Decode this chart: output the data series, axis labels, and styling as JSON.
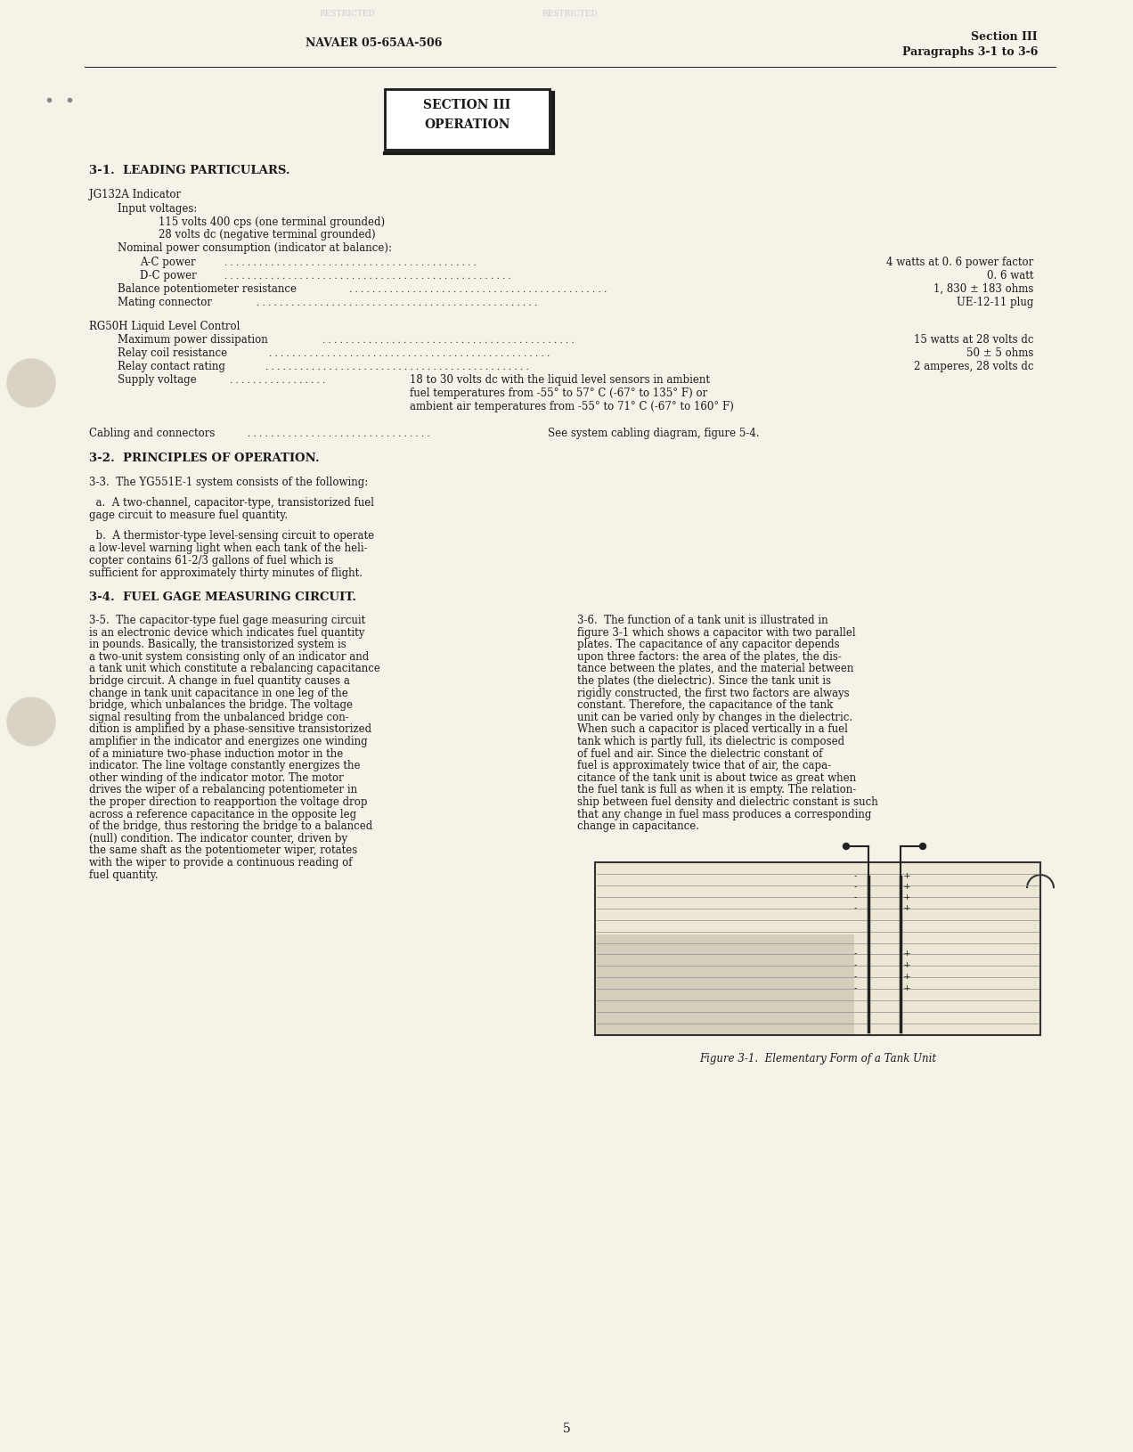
{
  "page_bg": "#f5f2e8",
  "text_color": "#1a1a1a",
  "header_left": "NAVAER 05-65AA-506",
  "header_right_line1": "Section III",
  "header_right_line2": "Paragraphs 3-1 to 3-6",
  "section_box_line1": "SECTION III",
  "section_box_line2": "OPERATION",
  "heading1": "3-1.  LEADING PARTICULARS.",
  "jg132a_label": "JG132A Indicator",
  "input_voltages_label": "Input voltages:",
  "volt1": "115 volts 400 cps (one terminal grounded)",
  "volt2": "28 volts dc (negative terminal grounded)",
  "nominal_label": "Nominal power consumption (indicator at balance):",
  "ac_power_label": "A-C power",
  "ac_power_value": "4 watts at 0. 6 power factor",
  "dc_power_label": "D-C power",
  "dc_power_value": "0. 6 watt",
  "balance_label": "Balance potentiometer resistance",
  "balance_value": "1, 830 ± 183 ohms",
  "mating_label": "Mating connector",
  "mating_value": "UE-12-11 plug",
  "rg50h_label": "RG50H Liquid Level Control",
  "max_power_label": "Maximum power dissipation",
  "max_power_value": "15 watts at 28 volts dc",
  "relay_coil_label": "Relay coil resistance",
  "relay_coil_value": "50 ± 5 ohms",
  "relay_contact_label": "Relay contact rating",
  "relay_contact_value": "2 amperes, 28 volts dc",
  "supply_label": "Supply voltage",
  "supply_value1": "18 to 30 volts dc with the liquid level sensors in ambient",
  "supply_value2": "fuel temperatures from -55° to 57° C (-67° to 135° F) or",
  "supply_value3": "ambient air temperatures from -55° to 71° C (-67° to 160° F)",
  "cabling_label": "Cabling and connectors",
  "cabling_value": "See system cabling diagram, figure 5-4.",
  "heading2": "3-2.  PRINCIPLES OF OPERATION.",
  "heading3": "3-3.  The YG551E-1 system consists of the following:",
  "heading4": "3-4.  FUEL GAGE MEASURING CIRCUIT.",
  "figure_caption": "Figure 3-1.  Elementary Form of a Tank Unit",
  "page_number": "5"
}
